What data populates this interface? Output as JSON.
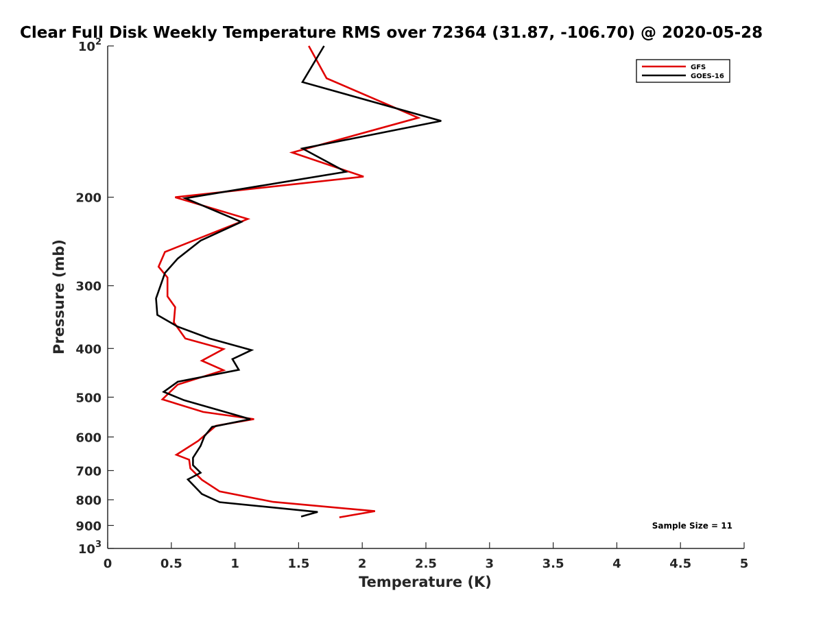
{
  "chart_data": {
    "type": "line",
    "title": "Clear Full Disk Weekly Temperature RMS over 72364 (31.87, -106.70) @ 2020-05-28",
    "xlabel": "Temperature (K)",
    "ylabel": "Pressure (mb)",
    "xlim": [
      0,
      5
    ],
    "ylim": [
      100,
      1000
    ],
    "y_scale": "log",
    "y_reversed": true,
    "xticks": [
      0,
      0.5,
      1,
      1.5,
      2,
      2.5,
      3,
      3.5,
      4,
      4.5,
      5
    ],
    "xtick_labels": [
      "0",
      "0.5",
      "1",
      "1.5",
      "2",
      "2.5",
      "3",
      "3.5",
      "4",
      "4.5",
      "5"
    ],
    "yticks": [
      100,
      200,
      300,
      400,
      500,
      600,
      700,
      800,
      900,
      1000
    ],
    "ytick_labels": [
      {
        "base": "10",
        "exp": "2"
      },
      {
        "base": "200",
        "exp": ""
      },
      {
        "base": "300",
        "exp": ""
      },
      {
        "base": "400",
        "exp": ""
      },
      {
        "base": "500",
        "exp": ""
      },
      {
        "base": "600",
        "exp": ""
      },
      {
        "base": "700",
        "exp": ""
      },
      {
        "base": "800",
        "exp": ""
      },
      {
        "base": "900",
        "exp": ""
      },
      {
        "base": "10",
        "exp": "3"
      }
    ],
    "grid": false,
    "legend_position": "top-right",
    "annotation": "Sample Size = 11",
    "series": [
      {
        "name": "GFS",
        "color": "#e00000",
        "points": [
          [
            1.58,
            100
          ],
          [
            1.72,
            116
          ],
          [
            2.44,
            139
          ],
          [
            1.45,
            163
          ],
          [
            2.01,
            182
          ],
          [
            0.53,
            200
          ],
          [
            1.1,
            221
          ],
          [
            0.45,
            257
          ],
          [
            0.4,
            275
          ],
          [
            0.47,
            289
          ],
          [
            0.47,
            315
          ],
          [
            0.53,
            331
          ],
          [
            0.52,
            355
          ],
          [
            0.61,
            382
          ],
          [
            0.91,
            401
          ],
          [
            0.74,
            423
          ],
          [
            0.91,
            442
          ],
          [
            0.55,
            472
          ],
          [
            0.43,
            505
          ],
          [
            0.75,
            535
          ],
          [
            1.15,
            553
          ],
          [
            0.85,
            570
          ],
          [
            0.71,
            611
          ],
          [
            0.54,
            651
          ],
          [
            0.64,
            666
          ],
          [
            0.65,
            693
          ],
          [
            0.74,
            730
          ],
          [
            0.88,
            770
          ],
          [
            1.3,
            808
          ],
          [
            2.1,
            843
          ],
          [
            1.82,
            867
          ]
        ]
      },
      {
        "name": "GOES-16",
        "color": "#000000",
        "points": [
          [
            1.7,
            100
          ],
          [
            1.53,
            118
          ],
          [
            2.62,
            141
          ],
          [
            1.53,
            160
          ],
          [
            1.87,
            178
          ],
          [
            0.61,
            201
          ],
          [
            1.05,
            224
          ],
          [
            0.73,
            244
          ],
          [
            0.55,
            265
          ],
          [
            0.45,
            283
          ],
          [
            0.38,
            318
          ],
          [
            0.39,
            343
          ],
          [
            0.55,
            362
          ],
          [
            0.8,
            382
          ],
          [
            1.13,
            403
          ],
          [
            0.98,
            420
          ],
          [
            1.03,
            441
          ],
          [
            0.55,
            466
          ],
          [
            0.44,
            488
          ],
          [
            0.6,
            507
          ],
          [
            1.12,
            553
          ],
          [
            0.82,
            573
          ],
          [
            0.76,
            598
          ],
          [
            0.73,
            625
          ],
          [
            0.67,
            660
          ],
          [
            0.67,
            683
          ],
          [
            0.73,
            707
          ],
          [
            0.63,
            729
          ],
          [
            0.74,
            779
          ],
          [
            0.88,
            809
          ],
          [
            1.65,
            846
          ],
          [
            1.52,
            864
          ]
        ]
      }
    ]
  }
}
